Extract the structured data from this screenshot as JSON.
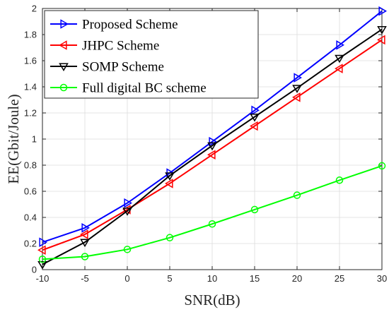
{
  "chart_data": {
    "type": "line",
    "title": "",
    "xlabel": "SNR(dB)",
    "ylabel": "EE(Gbit/Joule)",
    "xlim": [
      -10,
      30
    ],
    "ylim": [
      0,
      2
    ],
    "xticks": [
      -10,
      -5,
      0,
      5,
      10,
      15,
      20,
      25,
      30
    ],
    "yticks": [
      0,
      0.2,
      0.4,
      0.6,
      0.8,
      1,
      1.2,
      1.4,
      1.6,
      1.8,
      2
    ],
    "grid": true,
    "legend_position": "top-left",
    "x": [
      -10,
      -5,
      0,
      5,
      10,
      15,
      20,
      25,
      30
    ],
    "series": [
      {
        "name": "Proposed Scheme",
        "color": "#0000ff",
        "marker": "triangle-right",
        "values": [
          0.21,
          0.32,
          0.51,
          0.74,
          0.98,
          1.22,
          1.47,
          1.72,
          1.98
        ]
      },
      {
        "name": "JHPC Scheme",
        "color": "#ff0000",
        "marker": "triangle-left",
        "values": [
          0.15,
          0.27,
          0.46,
          0.66,
          0.88,
          1.1,
          1.32,
          1.54,
          1.76
        ]
      },
      {
        "name": "SOMP Scheme",
        "color": "#000000",
        "marker": "triangle-down",
        "values": [
          0.04,
          0.21,
          0.45,
          0.72,
          0.95,
          1.17,
          1.39,
          1.62,
          1.84
        ]
      },
      {
        "name": "Full digital BC scheme",
        "color": "#00ff00",
        "marker": "circle",
        "values": [
          0.08,
          0.1,
          0.155,
          0.245,
          0.35,
          0.46,
          0.57,
          0.685,
          0.795
        ]
      }
    ]
  }
}
